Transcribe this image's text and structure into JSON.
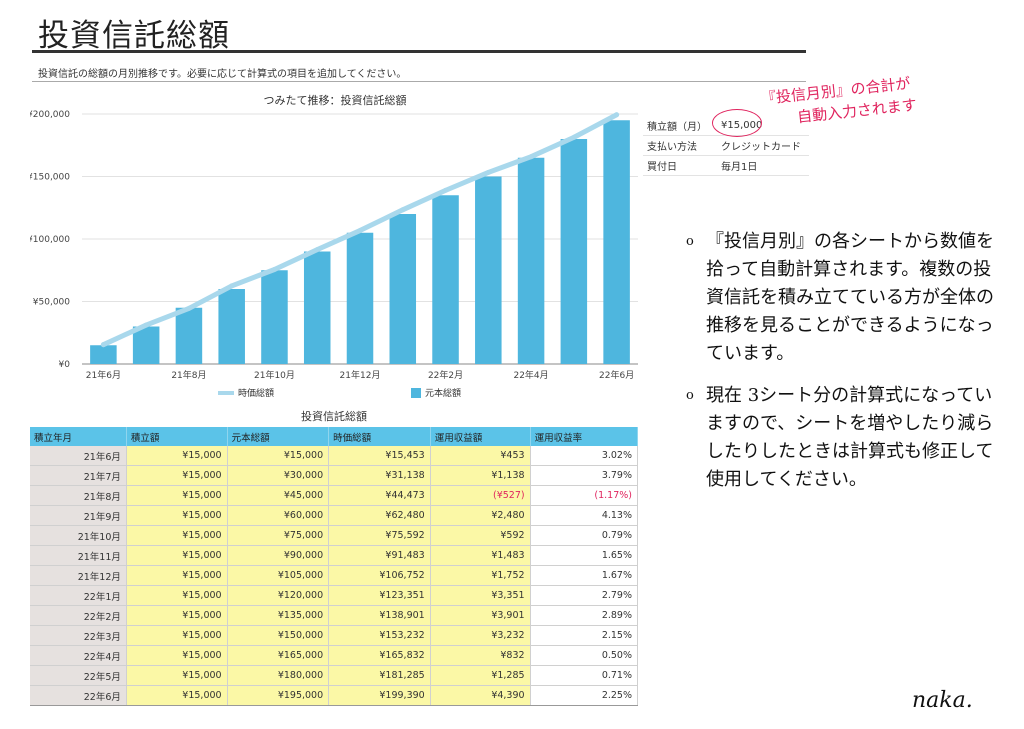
{
  "page": {
    "title": "投資信託総額",
    "description": "投資信託の総額の月別推移です。必要に応じて計算式の項目を追加してください。"
  },
  "chart_data": {
    "type": "bar",
    "title": "つみたて推移：投資信託総額",
    "categories": [
      "21年6月",
      "21年7月",
      "21年8月",
      "21年9月",
      "21年10月",
      "21年11月",
      "21年12月",
      "22年1月",
      "22年2月",
      "22年3月",
      "22年4月",
      "22年5月",
      "22年6月"
    ],
    "x_tick_labels": [
      "21年6月",
      "21年8月",
      "21年10月",
      "21年12月",
      "22年2月",
      "22年4月",
      "22年6月"
    ],
    "y_tick_labels": [
      "¥0",
      "¥50,000",
      "¥100,000",
      "¥150,000",
      "¥200,000"
    ],
    "ylim": [
      0,
      200000
    ],
    "series": [
      {
        "name": "元本総額",
        "type": "bar",
        "color": "#4eb6de",
        "values": [
          15000,
          30000,
          45000,
          60000,
          75000,
          90000,
          105000,
          120000,
          135000,
          150000,
          165000,
          180000,
          195000
        ]
      },
      {
        "name": "時価総額",
        "type": "line",
        "color": "#a9d8ec",
        "values": [
          15453,
          31138,
          44473,
          62480,
          75592,
          91483,
          106752,
          123351,
          138901,
          153232,
          165832,
          181285,
          199390
        ]
      }
    ],
    "legend_position": "bottom"
  },
  "info": [
    {
      "key": "積立額（月）",
      "value": "¥15,000"
    },
    {
      "key": "支払い方法",
      "value": "クレジットカード"
    },
    {
      "key": "買付日",
      "value": "毎月1日"
    }
  ],
  "annotation": {
    "line1": "『投信月別』の合計が",
    "line2": "自動入力されます",
    "color": "#e0245e"
  },
  "notes": [
    {
      "bullet": "o",
      "text": "『投信月別』の各シートから数値を拾って自動計算されます。複数の投資信託を積み立てている方が全体の推移を見ることができるようになっています。"
    },
    {
      "bullet": "o",
      "text": "現在 3シート分の計算式になっていますので、シートを増やしたり減らしたりしたときは計算式も修正して使用してください。"
    }
  ],
  "signature": "naka.",
  "table": {
    "title": "投資信託総額",
    "headers": [
      "積立年月",
      "積立額",
      "元本総額",
      "時価総額",
      "運用収益額",
      "運用収益率"
    ],
    "rows": [
      [
        "21年6月",
        "¥15,000",
        "¥15,000",
        "¥15,453",
        "¥453",
        "3.02%"
      ],
      [
        "21年7月",
        "¥15,000",
        "¥30,000",
        "¥31,138",
        "¥1,138",
        "3.79%"
      ],
      [
        "21年8月",
        "¥15,000",
        "¥45,000",
        "¥44,473",
        "(¥527)",
        "(1.17%)"
      ],
      [
        "21年9月",
        "¥15,000",
        "¥60,000",
        "¥62,480",
        "¥2,480",
        "4.13%"
      ],
      [
        "21年10月",
        "¥15,000",
        "¥75,000",
        "¥75,592",
        "¥592",
        "0.79%"
      ],
      [
        "21年11月",
        "¥15,000",
        "¥90,000",
        "¥91,483",
        "¥1,483",
        "1.65%"
      ],
      [
        "21年12月",
        "¥15,000",
        "¥105,000",
        "¥106,752",
        "¥1,752",
        "1.67%"
      ],
      [
        "22年1月",
        "¥15,000",
        "¥120,000",
        "¥123,351",
        "¥3,351",
        "2.79%"
      ],
      [
        "22年2月",
        "¥15,000",
        "¥135,000",
        "¥138,901",
        "¥3,901",
        "2.89%"
      ],
      [
        "22年3月",
        "¥15,000",
        "¥150,000",
        "¥153,232",
        "¥3,232",
        "2.15%"
      ],
      [
        "22年4月",
        "¥15,000",
        "¥165,000",
        "¥165,832",
        "¥832",
        "0.50%"
      ],
      [
        "22年5月",
        "¥15,000",
        "¥180,000",
        "¥181,285",
        "¥1,285",
        "0.71%"
      ],
      [
        "22年6月",
        "¥15,000",
        "¥195,000",
        "¥199,390",
        "¥4,390",
        "2.25%"
      ]
    ]
  }
}
